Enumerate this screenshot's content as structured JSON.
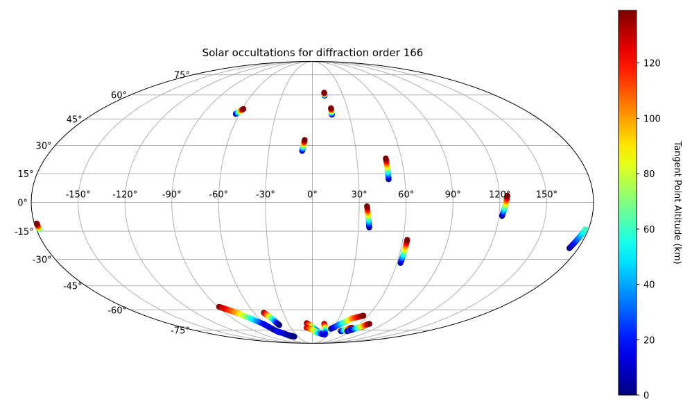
{
  "chart_data": {
    "type": "scatter",
    "projection": "mollweide",
    "title": "Solar occultations for diffraction order 166",
    "lon_ticks": [
      "-150°",
      "-120°",
      "-90°",
      "-60°",
      "-30°",
      "0°",
      "30°",
      "60°",
      "90°",
      "120°",
      "150°"
    ],
    "lon_tick_values": [
      -150,
      -120,
      -90,
      -60,
      -30,
      0,
      30,
      60,
      90,
      120,
      150
    ],
    "lat_ticks": [
      "-75°",
      "-60°",
      "-45°",
      "-30°",
      "-15°",
      "0°",
      "15°",
      "30°",
      "45°",
      "60°",
      "75°"
    ],
    "lat_tick_values": [
      -75,
      -60,
      -45,
      -30,
      -15,
      0,
      15,
      30,
      45,
      60,
      75
    ],
    "grid": true,
    "colorbar": {
      "label": "Tangent Point Altitude (km)",
      "colormap": "jet",
      "range": [
        0,
        139
      ],
      "ticks": [
        "0",
        "20",
        "40",
        "60",
        "80",
        "100",
        "120"
      ],
      "tick_values": [
        0,
        20,
        40,
        60,
        80,
        100,
        120
      ]
    },
    "tracks": [
      {
        "lon": [
          12,
          12
        ],
        "lat": [
          59.5,
          61.5
        ],
        "alt": [
          0,
          139
        ]
      },
      {
        "lon": [
          16,
          16
        ],
        "lat": [
          47.5,
          51.5
        ],
        "alt": [
          0,
          139
        ]
      },
      {
        "lon": [
          -63,
          -59
        ],
        "lat": [
          48,
          51
        ],
        "alt": [
          0,
          139
        ]
      },
      {
        "lon": [
          -7,
          -5.5
        ],
        "lat": [
          27,
          33
        ],
        "alt": [
          0,
          139
        ]
      },
      {
        "lon": [
          49.5,
          49.5
        ],
        "lat": [
          12,
          23
        ],
        "alt": [
          0,
          139
        ]
      },
      {
        "lon": [
          37,
          35
        ],
        "lat": [
          -13,
          -2
        ],
        "alt": [
          0,
          139
        ]
      },
      {
        "lon": [
          -178,
          -178.5
        ],
        "lat": [
          -14,
          -11
        ],
        "alt": [
          60,
          139
        ]
      },
      {
        "lon": [
          122,
          125
        ],
        "lat": [
          -7,
          3.5
        ],
        "alt": [
          0,
          139
        ]
      },
      {
        "lon": [
          174,
          178
        ],
        "lat": [
          -24,
          -14
        ],
        "alt": [
          0,
          60
        ]
      },
      {
        "lon": [
          62.5,
          63
        ],
        "lat": [
          -32,
          -19.5
        ],
        "alt": [
          0,
          139
        ]
      },
      {
        "lon": [
          -50,
          -46,
          -43
        ],
        "lat": [
          -62,
          -66,
          -71
        ],
        "alt": [
          139,
          70,
          0
        ]
      },
      {
        "lon": [
          -89,
          -78,
          -62,
          -55
        ],
        "lat": [
          -58,
          -62,
          -70,
          -77
        ],
        "alt": [
          139,
          100,
          20,
          0
        ]
      },
      {
        "lon": [
          -56,
          -44,
          -38
        ],
        "lat": [
          -76,
          -80,
          -81
        ],
        "alt": [
          20,
          5,
          0
        ]
      },
      {
        "lon": [
          -7,
          8
        ],
        "lat": [
          -69.5,
          -76
        ],
        "alt": [
          139,
          20
        ]
      },
      {
        "lon": [
          -8,
          20
        ],
        "lat": [
          -73,
          -79
        ],
        "alt": [
          130,
          10
        ]
      },
      {
        "lon": [
          5,
          22
        ],
        "lat": [
          -77,
          -79
        ],
        "alt": [
          80,
          0
        ]
      },
      {
        "lon": [
          15,
          23
        ],
        "lat": [
          -70,
          -79
        ],
        "alt": [
          139,
          15
        ]
      },
      {
        "lon": [
          27,
          36,
          45,
          55
        ],
        "lat": [
          -74,
          -70,
          -66,
          -64
        ],
        "alt": [
          0,
          40,
          100,
          139
        ]
      },
      {
        "lon": [
          45,
          55
        ],
        "lat": [
          -76,
          -73
        ],
        "alt": [
          0,
          139
        ]
      },
      {
        "lon": [
          55,
          68
        ],
        "lat": [
          -76,
          -72
        ],
        "alt": [
          0,
          139
        ]
      },
      {
        "lon": [
          58,
          72
        ],
        "lat": [
          -75,
          -70
        ],
        "alt": [
          0,
          139
        ]
      }
    ]
  }
}
